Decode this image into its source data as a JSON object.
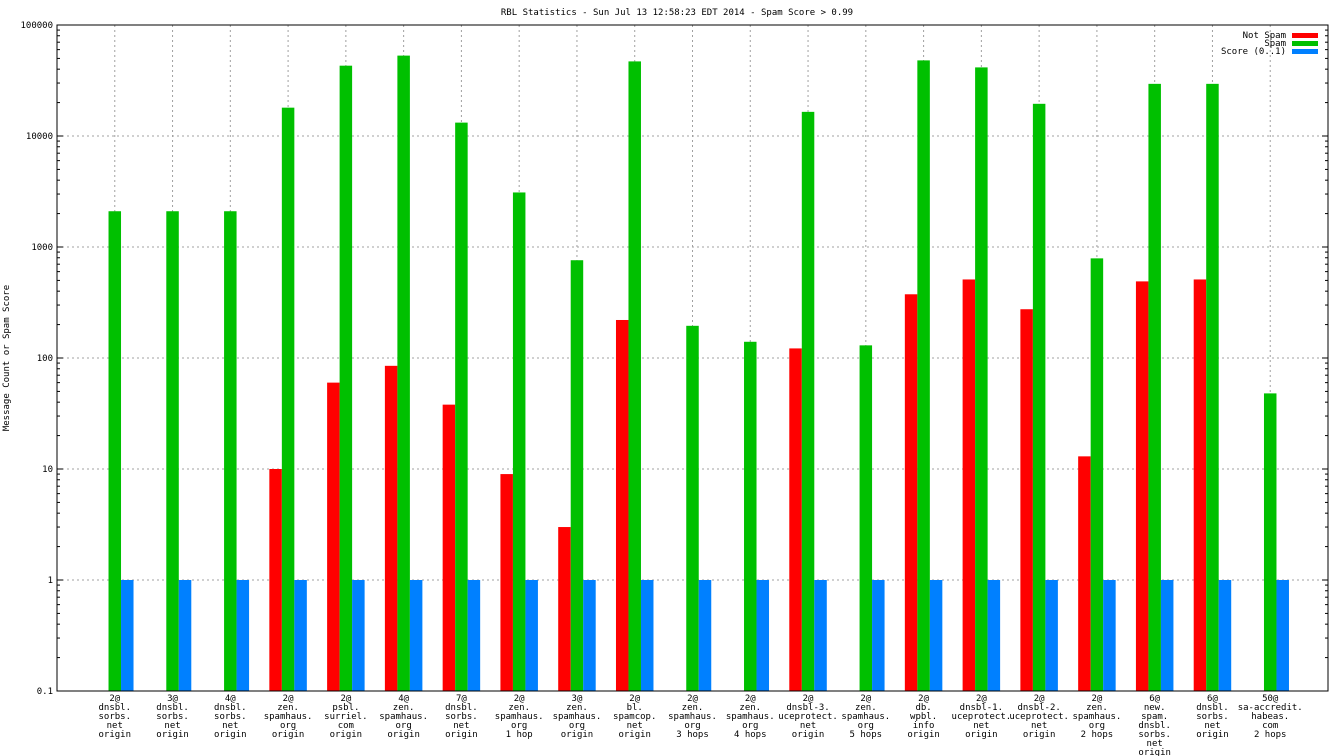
{
  "chart_data": {
    "type": "bar",
    "title": "RBL Statistics - Sun Jul 13 12:58:23 EDT 2014 - Spam Score > 0.99",
    "xlabel": "",
    "ylabel": "Message Count or Spam Score",
    "yscale": "log",
    "ylim": [
      0.1,
      100000
    ],
    "yticks": [
      "0.1",
      "1",
      "10",
      "100",
      "1000",
      "10000",
      "100000"
    ],
    "grid": true,
    "legend_position": "top-right",
    "categories": [
      [
        "2@",
        "dnsbl.",
        "sorbs.",
        "net",
        "origin"
      ],
      [
        "3@",
        "dnsbl.",
        "sorbs.",
        "net",
        "origin"
      ],
      [
        "4@",
        "dnsbl.",
        "sorbs.",
        "net",
        "origin"
      ],
      [
        "2@",
        "zen.",
        "spamhaus.",
        "org",
        "origin"
      ],
      [
        "2@",
        "psbl.",
        "surriel.",
        "com",
        "origin"
      ],
      [
        "4@",
        "zen.",
        "spamhaus.",
        "org",
        "origin"
      ],
      [
        "7@",
        "dnsbl.",
        "sorbs.",
        "net",
        "origin"
      ],
      [
        "2@",
        "zen.",
        "spamhaus.",
        "org",
        "1 hop"
      ],
      [
        "3@",
        "zen.",
        "spamhaus.",
        "org",
        "origin"
      ],
      [
        "2@",
        "bl.",
        "spamcop.",
        "net",
        "origin"
      ],
      [
        "2@",
        "zen.",
        "spamhaus.",
        "org",
        "3 hops"
      ],
      [
        "2@",
        "zen.",
        "spamhaus.",
        "org",
        "4 hops"
      ],
      [
        "2@",
        "dnsbl-3.",
        "uceprotect.",
        "net",
        "origin"
      ],
      [
        "2@",
        "zen.",
        "spamhaus.",
        "org",
        "5 hops"
      ],
      [
        "2@",
        "db.",
        "wpbl.",
        "info",
        "origin"
      ],
      [
        "2@",
        "dnsbl-1.",
        "uceprotect.",
        "net",
        "origin"
      ],
      [
        "2@",
        "dnsbl-2.",
        "uceprotect.",
        "net",
        "origin"
      ],
      [
        "2@",
        "zen.",
        "spamhaus.",
        "org",
        "2 hops"
      ],
      [
        "6@",
        "new.",
        "spam.",
        "dnsbl.",
        "sorbs.",
        "net",
        "origin"
      ],
      [
        "6@",
        "dnsbl.",
        "sorbs.",
        "net",
        "origin"
      ],
      [
        "50@",
        "sa-accredit.",
        "habeas.",
        "com",
        "2 hops"
      ]
    ],
    "series": [
      {
        "name": "Not Spam",
        "color": "#ff0000",
        "values": [
          null,
          null,
          null,
          10,
          60,
          85,
          38,
          9,
          3,
          220,
          null,
          null,
          122,
          null,
          375,
          510,
          275,
          13,
          490,
          510,
          null
        ]
      },
      {
        "name": "Spam",
        "color": "#00c000",
        "values": [
          2100,
          2100,
          2100,
          18000,
          43000,
          53000,
          13200,
          3100,
          760,
          47000,
          195,
          140,
          16500,
          130,
          48000,
          41500,
          19500,
          790,
          29500,
          29500,
          48
        ]
      },
      {
        "name": "Score (0..1)",
        "color": "#0080ff",
        "values": [
          1,
          1,
          1,
          1,
          1,
          1,
          1,
          1,
          1,
          1,
          1,
          1,
          1,
          1,
          1,
          1,
          1,
          1,
          1,
          1,
          1
        ]
      }
    ]
  }
}
